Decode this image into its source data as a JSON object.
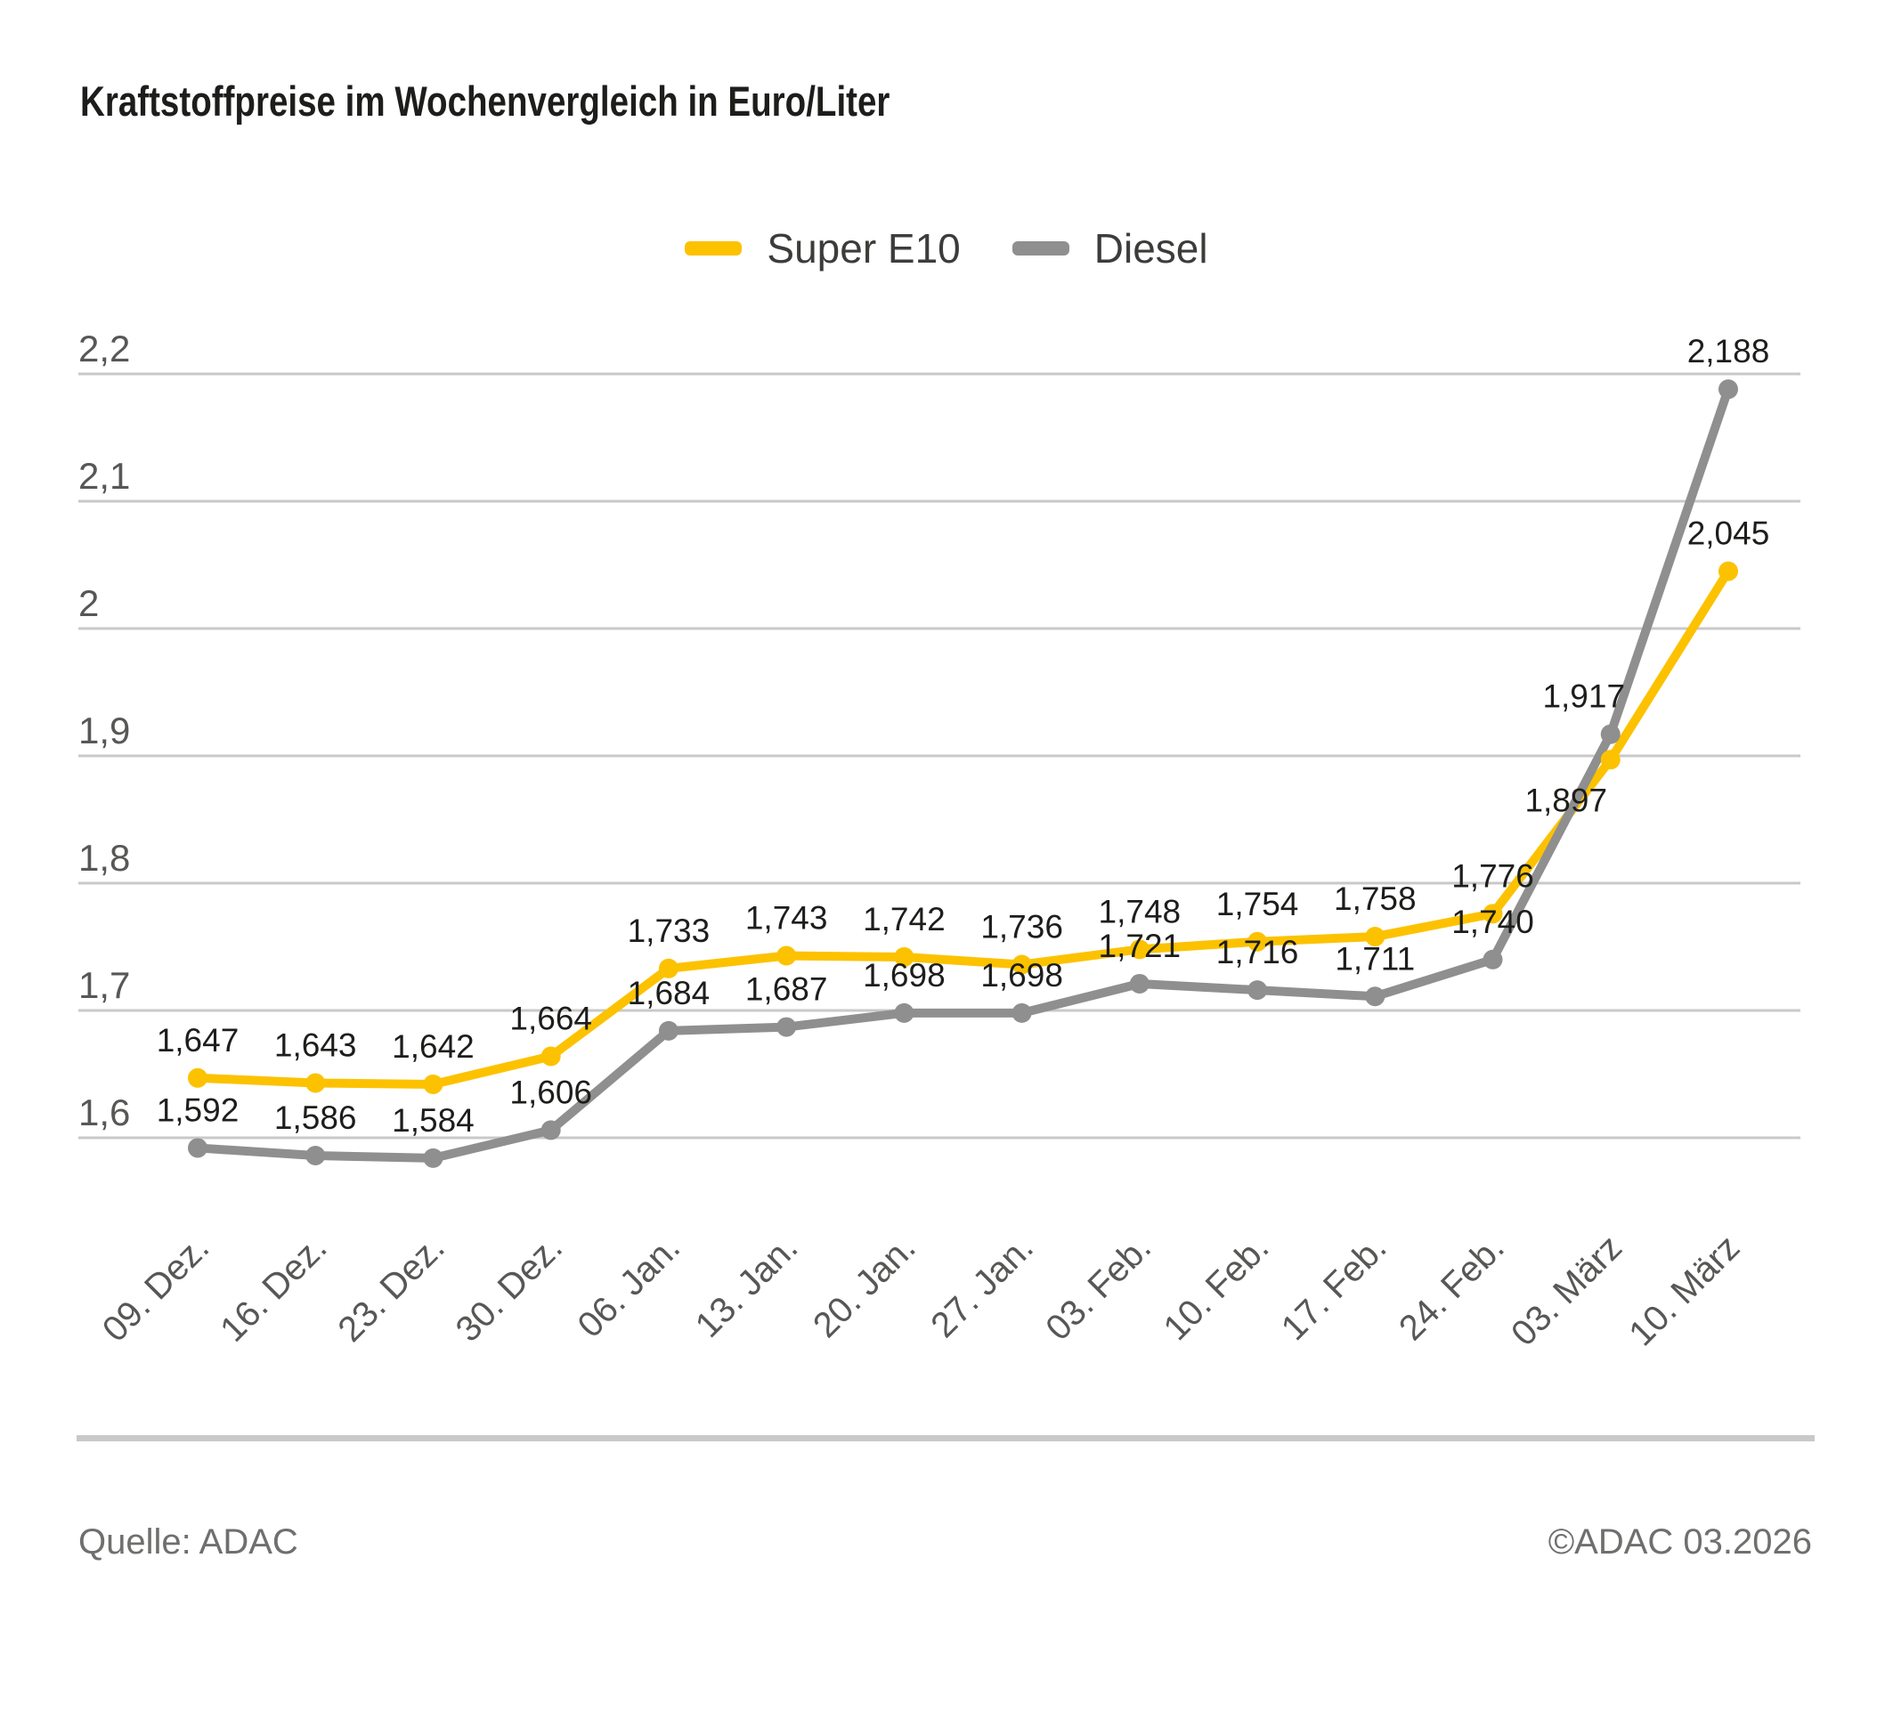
{
  "title": "Kraftstoffpreise im Wochenvergleich in Euro/Liter",
  "legend": {
    "items": [
      {
        "key": "super-e10",
        "label": "Super E10"
      },
      {
        "key": "diesel",
        "label": "Diesel"
      }
    ]
  },
  "footer": {
    "source": "Quelle: ADAC",
    "copyright": "©ADAC 03.2026"
  },
  "colors": {
    "super_e10": "#fcc200",
    "diesel": "#8f8f8f",
    "grid": "#c9c9c9",
    "axis_text": "#575756",
    "data_label": "#1d1d1b",
    "title": "#1d1d1b",
    "legend_text": "#3c3c3b",
    "footer_text": "#6f6f6e",
    "separator": "#c9c9c9"
  },
  "chart_data": {
    "type": "line",
    "title": "Kraftstoffpreise im Wochenvergleich in Euro/Liter",
    "ylabel": "Euro/Liter",
    "xlabel": "",
    "grid": true,
    "legend_position": "top-center",
    "ylim": [
      1.55,
      2.25
    ],
    "categories": [
      "09. Dez.",
      "16. Dez.",
      "23. Dez.",
      "30. Dez.",
      "06. Jan.",
      "13. Jan.",
      "20. Jan.",
      "27. Jan.",
      "03. Feb.",
      "10. Feb.",
      "17. Feb.",
      "24. Feb.",
      "03. März",
      "10. März"
    ],
    "yticks": [
      {
        "value": 2.2,
        "label": "2,2"
      },
      {
        "value": 2.1,
        "label": "2,1"
      },
      {
        "value": 2.0,
        "label": "2"
      },
      {
        "value": 1.9,
        "label": "1,9"
      },
      {
        "value": 1.8,
        "label": "1,8"
      },
      {
        "value": 1.7,
        "label": "1,7"
      },
      {
        "value": 1.6,
        "label": "1,6"
      }
    ],
    "series": [
      {
        "key": "super-e10",
        "name": "Super E10",
        "color": "#fcc200",
        "values": [
          1.647,
          1.643,
          1.642,
          1.664,
          1.733,
          1.743,
          1.742,
          1.736,
          1.748,
          1.754,
          1.758,
          1.776,
          1.897,
          2.045
        ],
        "labels": [
          "1,647",
          "1,643",
          "1,642",
          "1,664",
          "1,733",
          "1,743",
          "1,742",
          "1,736",
          "1,748",
          "1,754",
          "1,758",
          "1,776",
          "1,897",
          "2,045"
        ],
        "label_side": [
          "above",
          "above",
          "above",
          "above",
          "above",
          "above",
          "above",
          "above",
          "above",
          "above",
          "above",
          "above",
          "below-left",
          "above"
        ]
      },
      {
        "key": "diesel",
        "name": "Diesel",
        "color": "#8f8f8f",
        "values": [
          1.592,
          1.586,
          1.584,
          1.606,
          1.684,
          1.687,
          1.698,
          1.698,
          1.721,
          1.716,
          1.711,
          1.74,
          1.917,
          2.188
        ],
        "labels": [
          "1,592",
          "1,586",
          "1,584",
          "1,606",
          "1,684",
          "1,687",
          "1,698",
          "1,698",
          "1,721",
          "1,716",
          "1,711",
          "1,740",
          "1,917",
          "2,188"
        ],
        "label_side": [
          "above",
          "above",
          "above",
          "above",
          "above",
          "above",
          "above",
          "above",
          "above",
          "above",
          "above",
          "above",
          "above-left",
          "above"
        ]
      }
    ]
  }
}
